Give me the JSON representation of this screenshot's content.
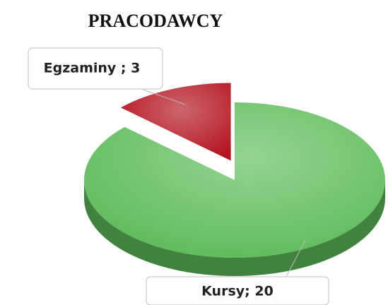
{
  "chart_data": {
    "type": "pie",
    "title": "PRACODAWCY",
    "values": [
      20,
      3
    ],
    "value_labels": [
      "Kursy; 20",
      "Egzaminy ; 3"
    ],
    "colors": [
      "#5dbb5a",
      "#b3131f"
    ]
  }
}
